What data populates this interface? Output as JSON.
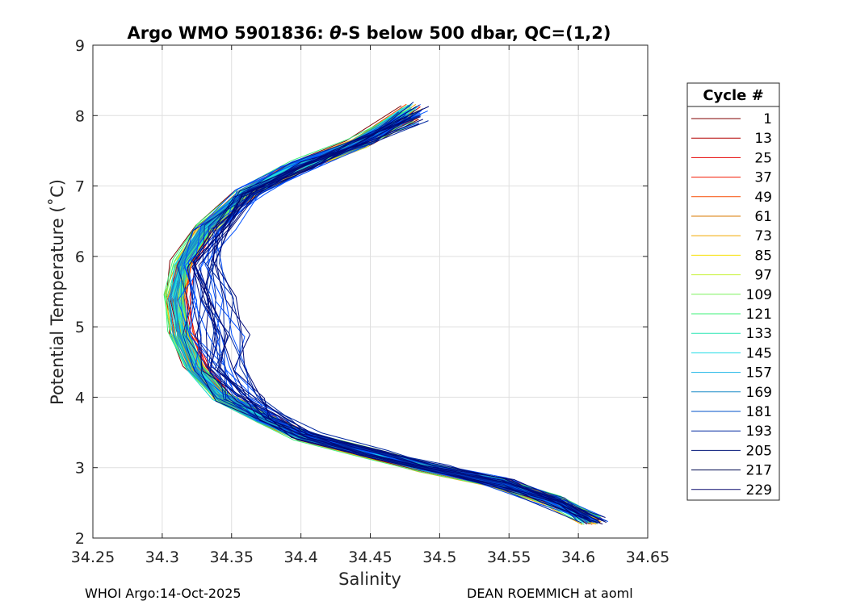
{
  "chart_data": {
    "type": "line",
    "title_pre": "Argo WMO 5901836: ",
    "title_theta": "θ",
    "title_post": "-S below 500 dbar,  QC=(1,2)",
    "xlabel": "Salinity",
    "ylabel": "Potential Temperature (˚C)",
    "xlim": [
      34.25,
      34.65
    ],
    "ylim": [
      2,
      9
    ],
    "xticks": [
      34.25,
      34.3,
      34.35,
      34.4,
      34.45,
      34.5,
      34.55,
      34.6,
      34.65
    ],
    "xtick_labels": [
      "34.25",
      "34.3",
      "34.35",
      "34.4",
      "34.45",
      "34.5",
      "34.55",
      "34.6",
      "34.65"
    ],
    "yticks": [
      2,
      3,
      4,
      5,
      6,
      7,
      8,
      9
    ],
    "ytick_labels": [
      "2",
      "3",
      "4",
      "5",
      "6",
      "7",
      "8",
      "9"
    ],
    "grid": true,
    "legend": {
      "title": "Cycle #",
      "placement": "right",
      "entries": [
        {
          "label": "1",
          "color": "#800000"
        },
        {
          "label": "13",
          "color": "#b30000"
        },
        {
          "label": "25",
          "color": "#e60000"
        },
        {
          "label": "37",
          "color": "#f21a00"
        },
        {
          "label": "49",
          "color": "#f74a00"
        },
        {
          "label": "61",
          "color": "#d97800"
        },
        {
          "label": "73",
          "color": "#f2a800"
        },
        {
          "label": "85",
          "color": "#f7e000"
        },
        {
          "label": "97",
          "color": "#c8f23c"
        },
        {
          "label": "109",
          "color": "#7cf25a"
        },
        {
          "label": "121",
          "color": "#3cf27a"
        },
        {
          "label": "133",
          "color": "#28e6b4"
        },
        {
          "label": "145",
          "color": "#1adce6"
        },
        {
          "label": "157",
          "color": "#1ab4e6"
        },
        {
          "label": "169",
          "color": "#1a8cc8"
        },
        {
          "label": "181",
          "color": "#0050c8"
        },
        {
          "label": "193",
          "color": "#0028a0"
        },
        {
          "label": "205",
          "color": "#001478"
        },
        {
          "label": "217",
          "color": "#000a50"
        },
        {
          "label": "229",
          "color": "#0a0a6e"
        }
      ]
    },
    "series_colors": [
      "#800000",
      "#e60000",
      "#f74a00",
      "#f2a800",
      "#c8f23c",
      "#3cf27a",
      "#1adce6",
      "#1a8cc8",
      "#0050ff",
      "#0028a0",
      "#000a78"
    ],
    "mean_profile": {
      "S": [
        34.61,
        34.58,
        34.54,
        34.49,
        34.45,
        34.4,
        34.37,
        34.34,
        34.32,
        34.308,
        34.305,
        34.312,
        34.33,
        34.36,
        34.4,
        34.44,
        34.48
      ],
      "theta": [
        2.25,
        2.55,
        2.8,
        3.0,
        3.2,
        3.45,
        3.7,
        4.0,
        4.4,
        4.9,
        5.4,
        5.9,
        6.4,
        6.9,
        7.3,
        7.6,
        7.9
      ]
    }
  },
  "footer": {
    "left": "WHOI Argo:14-Oct-2025",
    "right": "DEAN ROEMMICH at aoml"
  }
}
